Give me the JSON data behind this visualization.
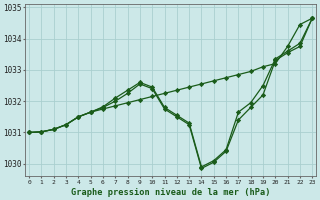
{
  "background_color": "#cce8e8",
  "grid_color": "#aacfcf",
  "line_color": "#1a5c1a",
  "marker_color": "#1a5c1a",
  "title": "Graphe pression niveau de la mer (hPa)",
  "ylim": [
    1029.6,
    1035.1
  ],
  "xlim": [
    -0.3,
    23.3
  ],
  "yticks": [
    1030,
    1031,
    1032,
    1033,
    1034,
    1035
  ],
  "xticks": [
    0,
    1,
    2,
    3,
    4,
    5,
    6,
    7,
    8,
    9,
    10,
    11,
    12,
    13,
    14,
    15,
    16,
    17,
    18,
    19,
    20,
    21,
    22,
    23
  ],
  "series": {
    "line1_x": [
      0,
      1,
      2,
      3,
      4,
      5,
      6,
      7,
      8,
      9,
      10,
      11,
      12,
      13,
      14,
      15,
      16,
      17,
      18,
      19,
      20,
      21,
      22,
      23
    ],
    "line1_y": [
      1031.0,
      1031.02,
      1031.1,
      1031.25,
      1031.5,
      1031.65,
      1031.75,
      1031.85,
      1031.95,
      1032.05,
      1032.15,
      1032.25,
      1032.35,
      1032.45,
      1032.55,
      1032.65,
      1032.75,
      1032.85,
      1032.95,
      1033.1,
      1033.2,
      1033.75,
      1034.45,
      1034.65
    ],
    "line2_x": [
      0,
      1,
      2,
      3,
      4,
      5,
      6,
      7,
      8,
      9,
      10,
      11,
      12,
      13,
      14,
      15,
      16,
      17,
      18,
      19,
      20,
      21,
      22,
      23
    ],
    "line2_y": [
      1031.0,
      1031.02,
      1031.1,
      1031.25,
      1031.5,
      1031.65,
      1031.8,
      1032.0,
      1032.25,
      1032.55,
      1032.4,
      1031.75,
      1031.5,
      1031.25,
      1029.85,
      1030.05,
      1030.4,
      1031.4,
      1031.8,
      1032.2,
      1033.3,
      1033.55,
      1033.75,
      1034.65
    ],
    "line3_x": [
      0,
      1,
      2,
      3,
      4,
      5,
      6,
      7,
      8,
      9,
      10,
      11,
      12,
      13,
      14,
      15,
      16,
      17,
      18,
      19,
      20,
      21,
      22,
      23
    ],
    "line3_y": [
      1031.0,
      1031.02,
      1031.1,
      1031.25,
      1031.5,
      1031.65,
      1031.82,
      1032.1,
      1032.35,
      1032.6,
      1032.45,
      1031.8,
      1031.55,
      1031.3,
      1029.9,
      1030.1,
      1030.45,
      1031.65,
      1031.95,
      1032.5,
      1033.35,
      1033.6,
      1033.85,
      1034.65
    ]
  }
}
